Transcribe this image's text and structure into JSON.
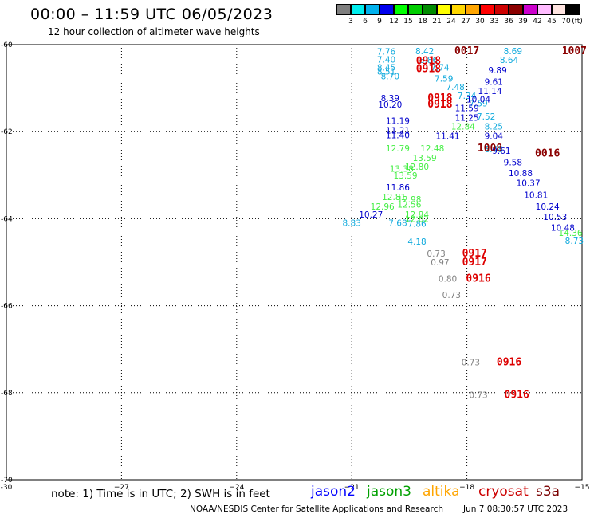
{
  "header": {
    "title": "00:00 – 11:59 UTC 06/05/2023",
    "subtitle": "12 hour collection of altimeter wave heights"
  },
  "colorbar": {
    "colors": [
      "#7f7f7f",
      "#00eeee",
      "#00b2ee",
      "#0000ee",
      "#00ff00",
      "#00cd00",
      "#008b00",
      "#ffff00",
      "#ffd700",
      "#ffa500",
      "#ff0000",
      "#cd0000",
      "#8b0000",
      "#cd00cd",
      "#ffbbff",
      "#ffe4e1",
      "#000000"
    ],
    "labels": [
      "3",
      "6",
      "9",
      "12",
      "15",
      "18",
      "21",
      "24",
      "27",
      "30",
      "33",
      "36",
      "39",
      "42",
      "45",
      "70"
    ],
    "unit": "(ft)"
  },
  "footer": {
    "note": "note: 1) Time is in UTC; 2) SWH is in feet",
    "satellites": [
      {
        "name": "jason2",
        "color": "#0000ff"
      },
      {
        "name": "jason3",
        "color": "#00a000"
      },
      {
        "name": "altika",
        "color": "#ffa500"
      },
      {
        "name": "cryosat",
        "color": "#cc0000"
      },
      {
        "name": "s3a",
        "color": "#7a0000"
      }
    ],
    "credit": "NOAA/NESDIS Center for Satellite Applications and Research",
    "timestamp": "Jun  7 08:30:57 UTC 2023"
  },
  "chart_data": {
    "type": "scatter",
    "title": "00:00 – 11:59 UTC 06/05/2023",
    "xlim": [
      -30,
      -15
    ],
    "ylim": [
      -70,
      -60
    ],
    "x_ticks": [
      {
        "value": -30,
        "label": "-30"
      },
      {
        "value": -27,
        "label": "−27"
      },
      {
        "value": -24,
        "label": "−24"
      },
      {
        "value": -21,
        "label": "−21"
      },
      {
        "value": -18,
        "label": "−18"
      },
      {
        "value": -15,
        "label": "−15"
      }
    ],
    "y_ticks": [
      {
        "value": -60,
        "label": "-60"
      },
      {
        "value": -62,
        "label": "-62"
      },
      {
        "value": -64,
        "label": "-64"
      },
      {
        "value": -66,
        "label": "-66"
      },
      {
        "value": -68,
        "label": "-68"
      },
      {
        "value": -70,
        "label": "-70"
      }
    ],
    "grid": true,
    "points": [
      {
        "lon": -20.1,
        "lat": -60.16,
        "label": "7.76",
        "color": "#11aadd"
      },
      {
        "lon": -20.1,
        "lat": -60.34,
        "label": "7.40",
        "color": "#11aadd"
      },
      {
        "lon": -20.1,
        "lat": -60.52,
        "label": "8.45",
        "color": "#11aadd"
      },
      {
        "lon": -20.1,
        "lat": -60.61,
        "label": "8.51",
        "color": "#11aadd"
      },
      {
        "lon": -20.0,
        "lat": -60.72,
        "label": "8.70",
        "color": "#11aadd"
      },
      {
        "lon": -19.1,
        "lat": -60.15,
        "label": "8.42",
        "color": "#11aadd"
      },
      {
        "lon": -19.0,
        "lat": -60.35,
        "label": "8.86",
        "color": "#11aadd"
      },
      {
        "lon": -18.7,
        "lat": -60.52,
        "label": "7.74",
        "color": "#11aadd"
      },
      {
        "lon": -18.6,
        "lat": -60.78,
        "label": "7.59",
        "color": "#11aadd"
      },
      {
        "lon": -18.3,
        "lat": -60.97,
        "label": "7.48",
        "color": "#11aadd"
      },
      {
        "lon": -18.0,
        "lat": -61.17,
        "label": "7.34",
        "color": "#11aadd"
      },
      {
        "lon": -17.7,
        "lat": -61.35,
        "label": "7.59",
        "color": "#11aadd"
      },
      {
        "lon": -17.5,
        "lat": -61.65,
        "label": "7.52",
        "color": "#11aadd"
      },
      {
        "lon": -17.3,
        "lat": -61.88,
        "label": "8.25",
        "color": "#11aadd"
      },
      {
        "lon": -16.8,
        "lat": -60.15,
        "label": "8.69",
        "color": "#11aadd"
      },
      {
        "lon": -16.9,
        "lat": -60.35,
        "label": "8.64",
        "color": "#11aadd"
      },
      {
        "lon": -17.3,
        "lat": -62.4,
        "label": "8.48",
        "color": "#11aadd"
      },
      {
        "lon": -21.0,
        "lat": -64.09,
        "label": "8.83",
        "color": "#11aadd"
      },
      {
        "lon": -19.8,
        "lat": -64.09,
        "label": "7.68",
        "color": "#11aadd"
      },
      {
        "lon": -19.3,
        "lat": -64.11,
        "label": "7.86",
        "color": "#11aadd"
      },
      {
        "lon": -15.2,
        "lat": -64.51,
        "label": "8.73",
        "color": "#11aadd"
      },
      {
        "lon": -19.3,
        "lat": -64.52,
        "label": "4.18",
        "color": "#11aadd"
      },
      {
        "lon": -17.2,
        "lat": -60.59,
        "label": "9.89",
        "color": "#0000cc"
      },
      {
        "lon": -17.3,
        "lat": -60.85,
        "label": "9.61",
        "color": "#0000cc"
      },
      {
        "lon": -17.4,
        "lat": -61.06,
        "label": "11.14",
        "color": "#0000cc"
      },
      {
        "lon": -17.7,
        "lat": -61.25,
        "label": "10.04",
        "color": "#0000cc"
      },
      {
        "lon": -18.0,
        "lat": -61.46,
        "label": "11.59",
        "color": "#0000cc"
      },
      {
        "lon": -18.0,
        "lat": -61.68,
        "label": "11.25",
        "color": "#0000cc"
      },
      {
        "lon": -17.3,
        "lat": -62.1,
        "label": "9.04",
        "color": "#0000cc"
      },
      {
        "lon": -18.5,
        "lat": -62.1,
        "label": "11.41",
        "color": "#0000cc"
      },
      {
        "lon": -17.1,
        "lat": -62.44,
        "label": "9.61",
        "color": "#0000cc"
      },
      {
        "lon": -16.8,
        "lat": -62.7,
        "label": "9.58",
        "color": "#0000cc"
      },
      {
        "lon": -16.6,
        "lat": -62.95,
        "label": "10.88",
        "color": "#0000cc"
      },
      {
        "lon": -16.4,
        "lat": -63.18,
        "label": "10.37",
        "color": "#0000cc"
      },
      {
        "lon": -16.2,
        "lat": -63.45,
        "label": "10.81",
        "color": "#0000cc"
      },
      {
        "lon": -15.9,
        "lat": -63.72,
        "label": "10.24",
        "color": "#0000cc"
      },
      {
        "lon": -15.7,
        "lat": -63.96,
        "label": "10.53",
        "color": "#0000cc"
      },
      {
        "lon": -15.5,
        "lat": -64.2,
        "label": "10.48",
        "color": "#0000cc"
      },
      {
        "lon": -20.0,
        "lat": -61.23,
        "label": "8.39",
        "color": "#0000cc"
      },
      {
        "lon": -20.0,
        "lat": -61.37,
        "label": "10.20",
        "color": "#0000cc"
      },
      {
        "lon": -19.8,
        "lat": -61.75,
        "label": "11.19",
        "color": "#0000cc"
      },
      {
        "lon": -19.8,
        "lat": -61.97,
        "label": "11.21",
        "color": "#0000cc"
      },
      {
        "lon": -19.8,
        "lat": -62.08,
        "label": "11.40",
        "color": "#0000cc"
      },
      {
        "lon": -19.8,
        "lat": -63.28,
        "label": "11.86",
        "color": "#0000cc"
      },
      {
        "lon": -20.5,
        "lat": -63.9,
        "label": "10.27",
        "color": "#0000cc"
      },
      {
        "lon": -19.8,
        "lat": -62.38,
        "label": "12.79",
        "color": "#44ee44"
      },
      {
        "lon": -18.9,
        "lat": -62.38,
        "label": "12.48",
        "color": "#44ee44"
      },
      {
        "lon": -19.1,
        "lat": -62.6,
        "label": "13.59",
        "color": "#44ee44"
      },
      {
        "lon": -19.3,
        "lat": -62.8,
        "label": "12.80",
        "color": "#44ee44"
      },
      {
        "lon": -19.7,
        "lat": -62.85,
        "label": "13.38",
        "color": "#44ee44"
      },
      {
        "lon": -19.6,
        "lat": -63.0,
        "label": "13.59",
        "color": "#44ee44"
      },
      {
        "lon": -19.9,
        "lat": -63.5,
        "label": "12.81",
        "color": "#44ee44"
      },
      {
        "lon": -19.5,
        "lat": -63.55,
        "label": "12.98",
        "color": "#44ee44"
      },
      {
        "lon": -20.2,
        "lat": -63.72,
        "label": "12.96",
        "color": "#44ee44"
      },
      {
        "lon": -19.5,
        "lat": -63.67,
        "label": "12.56",
        "color": "#44ee44"
      },
      {
        "lon": -19.3,
        "lat": -63.9,
        "label": "12.84",
        "color": "#44ee44"
      },
      {
        "lon": -19.3,
        "lat": -64.0,
        "label": "12.62",
        "color": "#44ee44"
      },
      {
        "lon": -18.1,
        "lat": -61.88,
        "label": "12.84",
        "color": "#44ee44"
      },
      {
        "lon": -15.3,
        "lat": -64.32,
        "label": "14.36",
        "color": "#44ee44"
      },
      {
        "lon": -18.0,
        "lat": -60.15,
        "label": "0017",
        "color": "#8b0000",
        "time": true
      },
      {
        "lon": -15.2,
        "lat": -60.15,
        "label": "1007",
        "color": "#8b0000",
        "time": true
      },
      {
        "lon": -17.4,
        "lat": -62.38,
        "label": "1008",
        "color": "#8b0000",
        "time": true
      },
      {
        "lon": -15.9,
        "lat": -62.5,
        "label": "0016",
        "color": "#8b0000",
        "time": true
      },
      {
        "lon": -19.0,
        "lat": -60.38,
        "label": "0918",
        "color": "#dd0000",
        "time": true
      },
      {
        "lon": -19.0,
        "lat": -60.56,
        "label": "0918",
        "color": "#dd0000",
        "time": true
      },
      {
        "lon": -18.7,
        "lat": -61.23,
        "label": "0918",
        "color": "#dd0000",
        "time": true
      },
      {
        "lon": -18.7,
        "lat": -61.37,
        "label": "0918",
        "color": "#dd0000",
        "time": true
      },
      {
        "lon": -17.8,
        "lat": -64.8,
        "label": "0917",
        "color": "#dd0000",
        "time": true
      },
      {
        "lon": -17.8,
        "lat": -65.0,
        "label": "0917",
        "color": "#dd0000",
        "time": true
      },
      {
        "lon": -17.7,
        "lat": -65.38,
        "label": "0916",
        "color": "#dd0000",
        "time": true
      },
      {
        "lon": -16.9,
        "lat": -67.3,
        "label": "0916",
        "color": "#dd0000",
        "time": true
      },
      {
        "lon": -16.7,
        "lat": -68.05,
        "label": "0916",
        "color": "#dd0000",
        "time": true
      },
      {
        "lon": -18.8,
        "lat": -64.8,
        "label": "0.73",
        "color": "#808080"
      },
      {
        "lon": -18.7,
        "lat": -65.0,
        "label": "0.97",
        "color": "#808080"
      },
      {
        "lon": -18.5,
        "lat": -65.38,
        "label": "0.80",
        "color": "#808080"
      },
      {
        "lon": -18.4,
        "lat": -65.75,
        "label": "0.73",
        "color": "#808080"
      },
      {
        "lon": -17.9,
        "lat": -67.3,
        "label": "0.73",
        "color": "#808080"
      },
      {
        "lon": -17.7,
        "lat": -68.05,
        "label": "0.73",
        "color": "#808080"
      }
    ]
  }
}
